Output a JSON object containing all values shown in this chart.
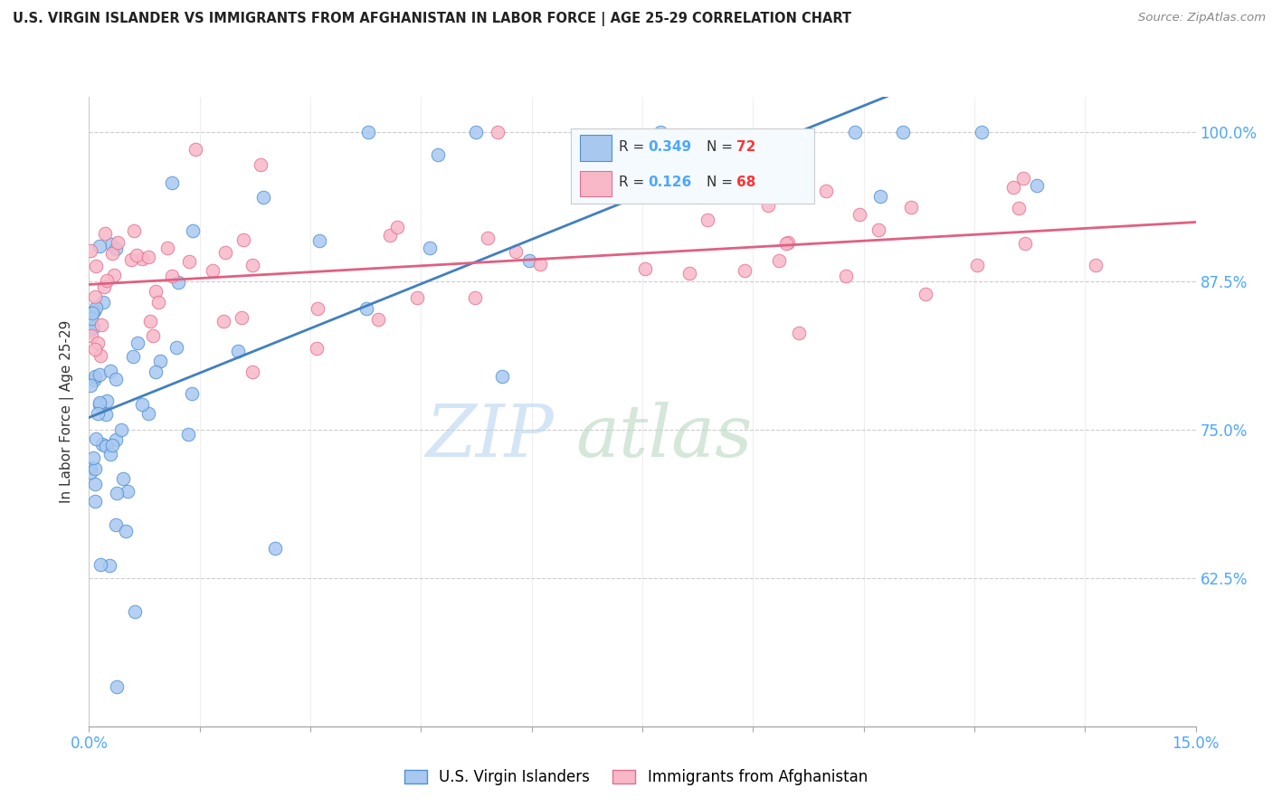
{
  "title": "U.S. VIRGIN ISLANDER VS IMMIGRANTS FROM AFGHANISTAN IN LABOR FORCE | AGE 25-29 CORRELATION CHART",
  "source_text": "Source: ZipAtlas.com",
  "ylabel": "In Labor Force | Age 25-29",
  "xlim": [
    0.0,
    0.15
  ],
  "ylim": [
    0.5,
    1.03
  ],
  "ytick_positions": [
    0.625,
    0.75,
    0.875,
    1.0
  ],
  "ytick_labels": [
    "62.5%",
    "75.0%",
    "87.5%",
    "100.0%"
  ],
  "xtick_positions": [
    0.0,
    0.015,
    0.03,
    0.045,
    0.06,
    0.075,
    0.09,
    0.105,
    0.12,
    0.135,
    0.15
  ],
  "xtick_labels": [
    "0.0%",
    "",
    "",
    "",
    "",
    "",
    "",
    "",
    "",
    "",
    "15.0%"
  ],
  "blue_face_color": "#a8c8f0",
  "blue_edge_color": "#5090d0",
  "pink_face_color": "#f8b8c8",
  "pink_edge_color": "#e07090",
  "blue_line_color": "#4080c0",
  "pink_line_color": "#e06080",
  "r_blue": 0.349,
  "n_blue": 72,
  "r_pink": 0.126,
  "n_pink": 68,
  "accent_blue": "#4da6ff",
  "accent_red": "#ff3333",
  "blue_intercept": 0.76,
  "blue_slope": 2.5,
  "pink_intercept": 0.872,
  "pink_slope": 0.35
}
